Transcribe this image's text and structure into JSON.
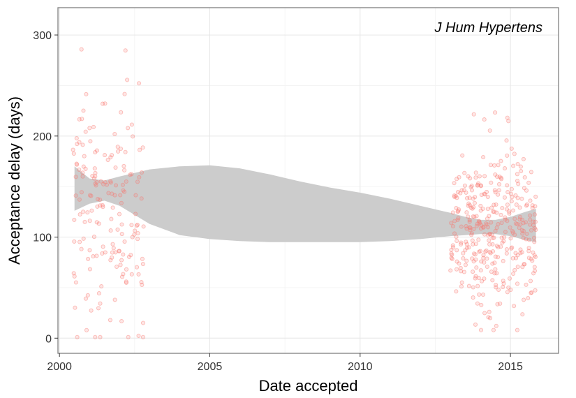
{
  "chart_data": {
    "type": "scatter",
    "title": "",
    "annotation": "J Hum Hypertens",
    "xlabel": "Date accepted",
    "ylabel": "Acceptance delay (days)",
    "xlim": [
      1999.95,
      2016.6
    ],
    "ylim": [
      -15,
      327
    ],
    "x_ticks": [
      2000,
      2005,
      2010,
      2015
    ],
    "y_ticks": [
      0,
      100,
      200,
      300
    ],
    "grid": true,
    "point_color": "#f8766d",
    "band_color": "#cccccc",
    "clusters": [
      {
        "x_range": [
          2000.45,
          2002.8
        ],
        "count": 180,
        "mean": 128,
        "sd": 62,
        "clip": [
          1,
          312
        ]
      },
      {
        "x_range": [
          2013.0,
          2015.85
        ],
        "count": 360,
        "mean": 108,
        "sd": 42,
        "clip": [
          8,
          295
        ]
      }
    ],
    "smooth_band": [
      {
        "x": 2000.5,
        "lower": 126,
        "upper": 170
      },
      {
        "x": 2001.0,
        "lower": 133,
        "upper": 158
      },
      {
        "x": 2001.5,
        "lower": 136,
        "upper": 156
      },
      {
        "x": 2002.0,
        "lower": 131,
        "upper": 160
      },
      {
        "x": 2003.0,
        "lower": 113,
        "upper": 167
      },
      {
        "x": 2004.0,
        "lower": 102,
        "upper": 170
      },
      {
        "x": 2005.0,
        "lower": 98,
        "upper": 171
      },
      {
        "x": 2006.0,
        "lower": 96,
        "upper": 168
      },
      {
        "x": 2007.0,
        "lower": 95,
        "upper": 162
      },
      {
        "x": 2008.0,
        "lower": 95,
        "upper": 155
      },
      {
        "x": 2009.0,
        "lower": 95,
        "upper": 149
      },
      {
        "x": 2010.0,
        "lower": 95,
        "upper": 144
      },
      {
        "x": 2011.0,
        "lower": 96,
        "upper": 138
      },
      {
        "x": 2012.0,
        "lower": 98,
        "upper": 131
      },
      {
        "x": 2013.0,
        "lower": 101,
        "upper": 124
      },
      {
        "x": 2013.5,
        "lower": 102,
        "upper": 120
      },
      {
        "x": 2014.0,
        "lower": 103,
        "upper": 117
      },
      {
        "x": 2014.5,
        "lower": 103,
        "upper": 117
      },
      {
        "x": 2015.0,
        "lower": 101,
        "upper": 120
      },
      {
        "x": 2015.5,
        "lower": 97,
        "upper": 125
      },
      {
        "x": 2015.85,
        "lower": 95,
        "upper": 128
      }
    ]
  }
}
